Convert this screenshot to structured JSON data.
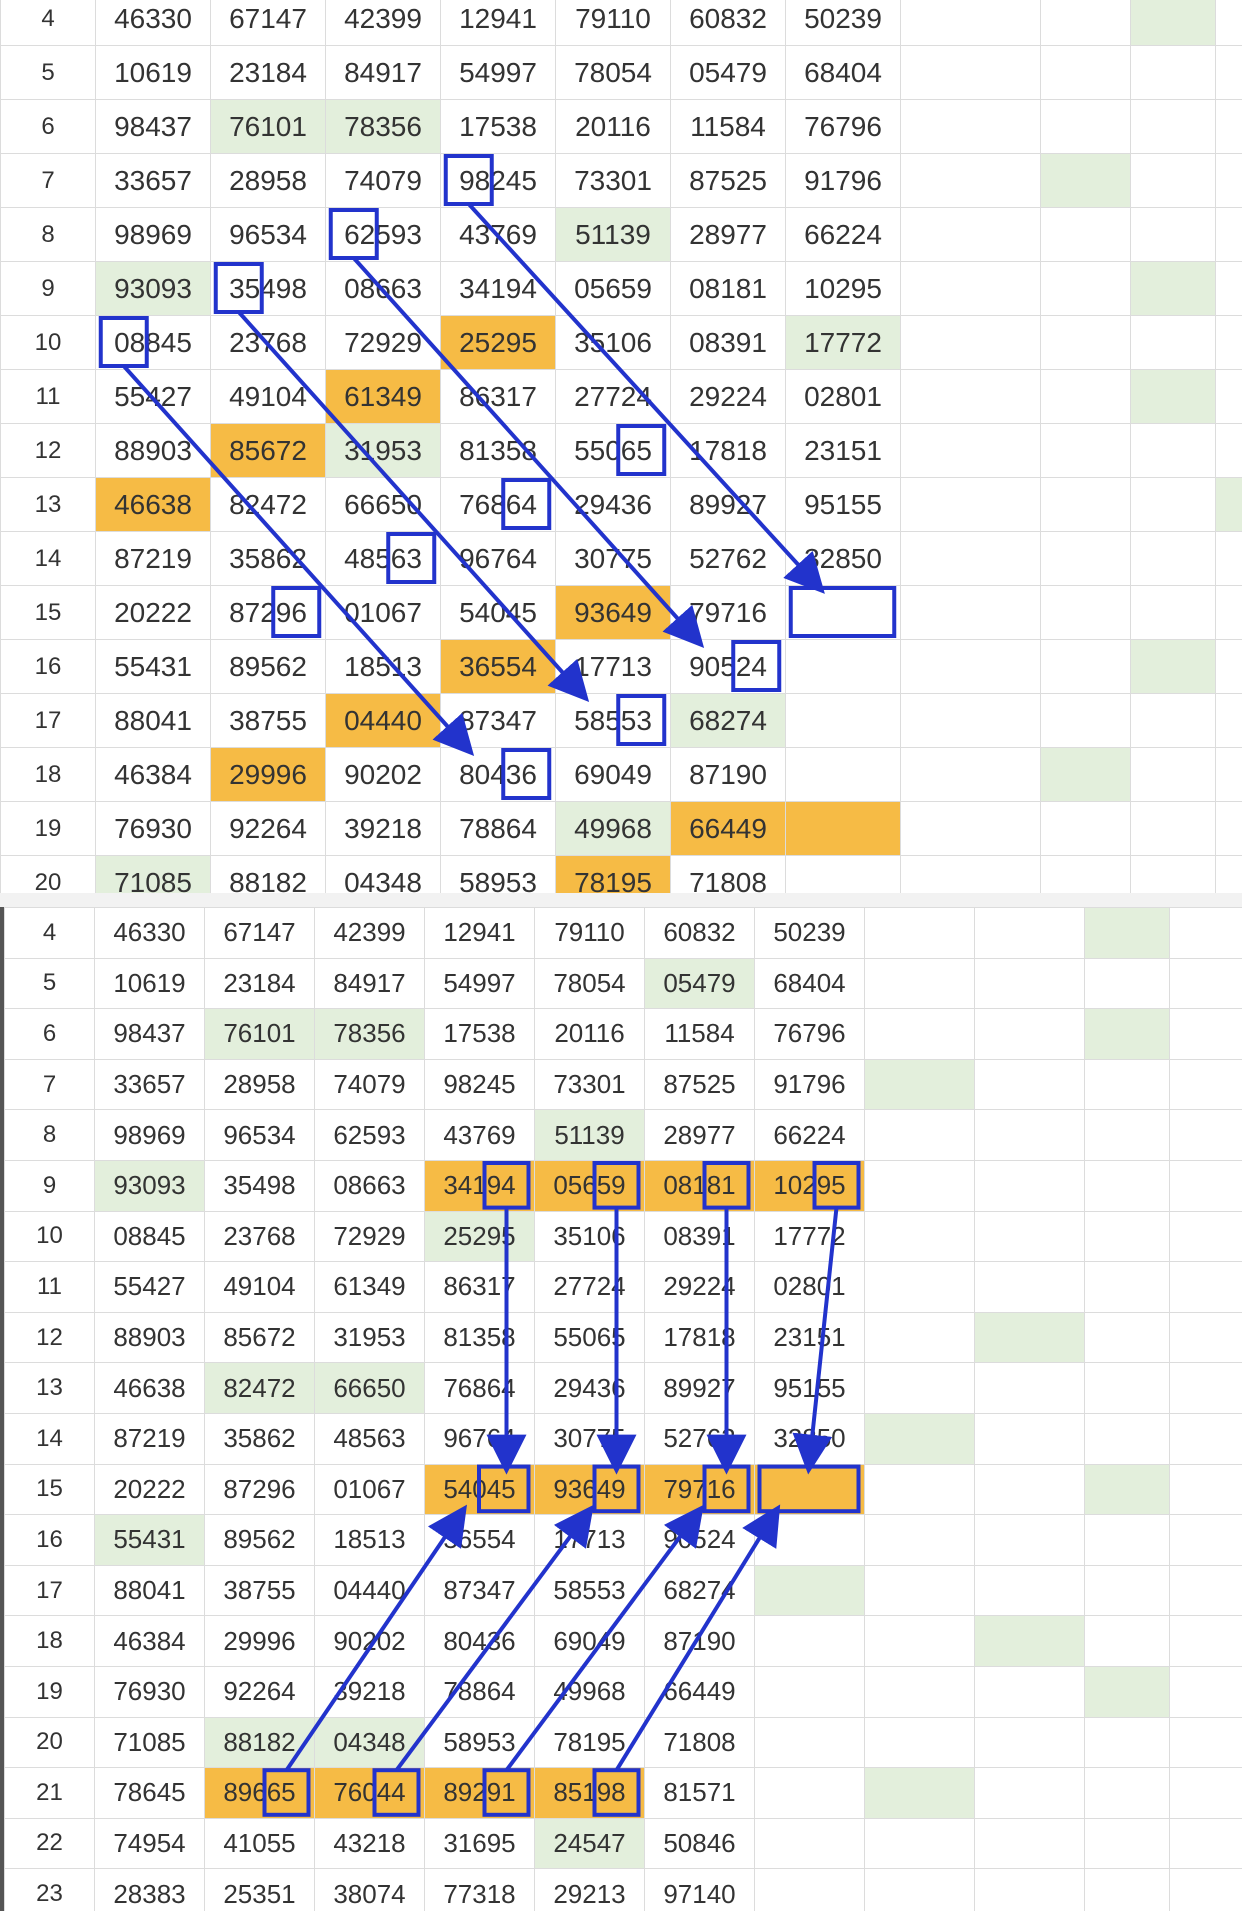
{
  "screens": [
    {
      "rows": [
        {
          "n": "4",
          "c": [
            "46330",
            "67147",
            "42399",
            "12941",
            "79110",
            "60832",
            "50239"
          ]
        },
        {
          "n": "5",
          "c": [
            "10619",
            "23184",
            "84917",
            "54997",
            "78054",
            "05479",
            "68404"
          ]
        },
        {
          "n": "6",
          "c": [
            "98437",
            "76101",
            "78356",
            "17538",
            "20116",
            "11584",
            "76796"
          ]
        },
        {
          "n": "7",
          "c": [
            "33657",
            "28958",
            "74079",
            "98245",
            "73301",
            "87525",
            "91796"
          ]
        },
        {
          "n": "8",
          "c": [
            "98969",
            "96534",
            "62593",
            "43769",
            "51139",
            "28977",
            "66224"
          ]
        },
        {
          "n": "9",
          "c": [
            "93093",
            "35498",
            "08663",
            "34194",
            "05659",
            "08181",
            "10295"
          ]
        },
        {
          "n": "10",
          "c": [
            "08845",
            "23768",
            "72929",
            "25295",
            "35106",
            "08391",
            "17772"
          ]
        },
        {
          "n": "11",
          "c": [
            "55427",
            "49104",
            "61349",
            "86317",
            "27724",
            "29224",
            "02801"
          ]
        },
        {
          "n": "12",
          "c": [
            "88903",
            "85672",
            "31953",
            "81358",
            "55065",
            "17818",
            "23151"
          ]
        },
        {
          "n": "13",
          "c": [
            "46638",
            "82472",
            "66650",
            "76864",
            "29436",
            "89927",
            "95155"
          ]
        },
        {
          "n": "14",
          "c": [
            "87219",
            "35862",
            "48563",
            "96764",
            "30775",
            "52762",
            "32850"
          ]
        },
        {
          "n": "15",
          "c": [
            "20222",
            "87296",
            "01067",
            "54045",
            "93649",
            "79716",
            ""
          ]
        },
        {
          "n": "16",
          "c": [
            "55431",
            "89562",
            "18513",
            "36554",
            "17713",
            "90524",
            ""
          ]
        },
        {
          "n": "17",
          "c": [
            "88041",
            "38755",
            "04440",
            "87347",
            "58553",
            "68274",
            ""
          ]
        },
        {
          "n": "18",
          "c": [
            "46384",
            "29996",
            "90202",
            "80436",
            "69049",
            "87190",
            ""
          ]
        },
        {
          "n": "19",
          "c": [
            "76930",
            "92264",
            "39218",
            "78864",
            "49968",
            "66449",
            ""
          ]
        },
        {
          "n": "20",
          "c": [
            "71085",
            "88182",
            "04348",
            "58953",
            "78195",
            "71808",
            ""
          ]
        }
      ]
    },
    {
      "rows": [
        {
          "n": "4",
          "c": [
            "46330",
            "67147",
            "42399",
            "12941",
            "79110",
            "60832",
            "50239"
          ]
        },
        {
          "n": "5",
          "c": [
            "10619",
            "23184",
            "84917",
            "54997",
            "78054",
            "05479",
            "68404"
          ]
        },
        {
          "n": "6",
          "c": [
            "98437",
            "76101",
            "78356",
            "17538",
            "20116",
            "11584",
            "76796"
          ]
        },
        {
          "n": "7",
          "c": [
            "33657",
            "28958",
            "74079",
            "98245",
            "73301",
            "87525",
            "91796"
          ]
        },
        {
          "n": "8",
          "c": [
            "98969",
            "96534",
            "62593",
            "43769",
            "51139",
            "28977",
            "66224"
          ]
        },
        {
          "n": "9",
          "c": [
            "93093",
            "35498",
            "08663",
            "34194",
            "05659",
            "08181",
            "10295"
          ]
        },
        {
          "n": "10",
          "c": [
            "08845",
            "23768",
            "72929",
            "25295",
            "35106",
            "08391",
            "17772"
          ]
        },
        {
          "n": "11",
          "c": [
            "55427",
            "49104",
            "61349",
            "86317",
            "27724",
            "29224",
            "02801"
          ]
        },
        {
          "n": "12",
          "c": [
            "88903",
            "85672",
            "31953",
            "81358",
            "55065",
            "17818",
            "23151"
          ]
        },
        {
          "n": "13",
          "c": [
            "46638",
            "82472",
            "66650",
            "76864",
            "29436",
            "89927",
            "95155"
          ]
        },
        {
          "n": "14",
          "c": [
            "87219",
            "35862",
            "48563",
            "96764",
            "30775",
            "52762",
            "32850"
          ]
        },
        {
          "n": "15",
          "c": [
            "20222",
            "87296",
            "01067",
            "54045",
            "93649",
            "79716",
            ""
          ]
        },
        {
          "n": "16",
          "c": [
            "55431",
            "89562",
            "18513",
            "36554",
            "17713",
            "90524",
            ""
          ]
        },
        {
          "n": "17",
          "c": [
            "88041",
            "38755",
            "04440",
            "87347",
            "58553",
            "68274",
            ""
          ]
        },
        {
          "n": "18",
          "c": [
            "46384",
            "29996",
            "90202",
            "80436",
            "69049",
            "87190",
            ""
          ]
        },
        {
          "n": "19",
          "c": [
            "76930",
            "92264",
            "39218",
            "78864",
            "49968",
            "66449",
            ""
          ]
        },
        {
          "n": "20",
          "c": [
            "71085",
            "88182",
            "04348",
            "58953",
            "78195",
            "71808",
            ""
          ]
        },
        {
          "n": "21",
          "c": [
            "78645",
            "89665",
            "76044",
            "89291",
            "85198",
            "81571",
            ""
          ]
        },
        {
          "n": "22",
          "c": [
            "74954",
            "41055",
            "43218",
            "31695",
            "24547",
            "50846",
            ""
          ]
        },
        {
          "n": "23",
          "c": [
            "28383",
            "25351",
            "38074",
            "77318",
            "29213",
            "97140",
            ""
          ]
        }
      ]
    }
  ],
  "colors": {
    "highlight": "#f6bb45",
    "shade": "#e3efdc",
    "arrow": "#2233cc",
    "rownum": "#3a5fcd"
  }
}
